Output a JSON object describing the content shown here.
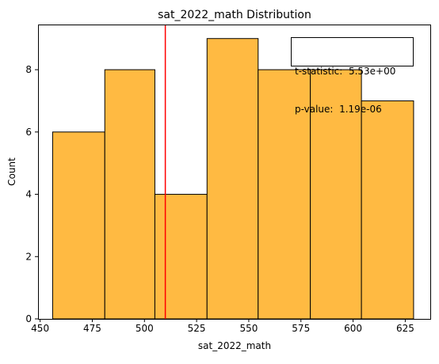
{
  "chart_data": {
    "type": "bar",
    "title": "sat_2022_math Distribution",
    "xlabel": "sat_2022_math",
    "ylabel": "Count",
    "bin_edges": [
      456,
      481,
      505,
      530,
      554.5,
      579.5,
      604,
      629
    ],
    "values": [
      6,
      8,
      4,
      9,
      8,
      8,
      7
    ],
    "xlim": [
      449,
      637
    ],
    "ylim": [
      0,
      9.45
    ],
    "xticks": [
      450,
      475,
      500,
      525,
      550,
      575,
      600,
      625
    ],
    "yticks": [
      0,
      2,
      4,
      6,
      8
    ],
    "reference_line_x": 510,
    "annotation": {
      "line1": "t-statistic:  5.53e+00",
      "line2": "p-value:  1.19e-06"
    },
    "grid": false,
    "colors": {
      "bar_fill": "#ffba42",
      "bar_edge": "#000000",
      "reference_line": "#ff0000"
    }
  }
}
